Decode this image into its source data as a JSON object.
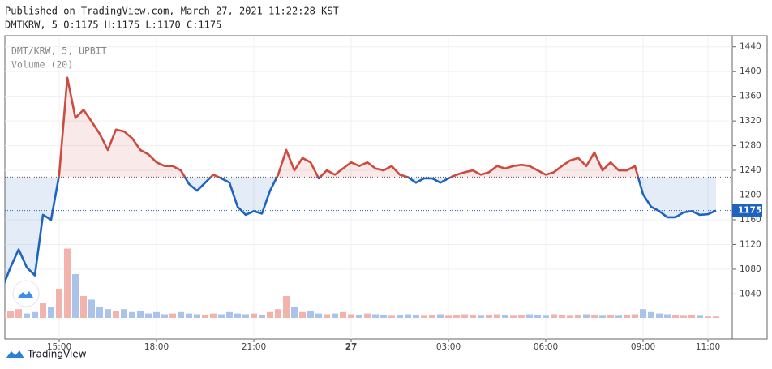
{
  "header": {
    "published": "Published on TradingView.com, March 27, 2021 11:22:28 KST",
    "ohlc": "DMTKRW, 5 O:1175 H:1175 L:1170 C:1175"
  },
  "footer": {
    "brand": "TradingView"
  },
  "chart_data": {
    "type": "baseline",
    "legend": [
      "DMT/KRW, 5, UPBIT",
      "Volume (20)"
    ],
    "categories": [
      null,
      null,
      null,
      null,
      null,
      null,
      null,
      "15:00",
      null,
      null,
      null,
      null,
      null,
      null,
      null,
      null,
      null,
      null,
      null,
      "18:00",
      null,
      null,
      null,
      null,
      null,
      null,
      null,
      null,
      null,
      null,
      null,
      "21:00",
      null,
      null,
      null,
      null,
      null,
      null,
      null,
      null,
      null,
      null,
      null,
      "27",
      null,
      null,
      null,
      null,
      null,
      null,
      null,
      null,
      null,
      null,
      null,
      "03:00",
      null,
      null,
      null,
      null,
      null,
      null,
      null,
      null,
      null,
      null,
      null,
      "06:00",
      null,
      null,
      null,
      null,
      null,
      null,
      null,
      null,
      null,
      null,
      null,
      "09:00",
      null,
      null,
      null,
      null,
      null,
      null,
      null,
      "11:00",
      null
    ],
    "values": [
      1050,
      1083,
      1112,
      1083,
      1070,
      1168,
      1160,
      1233,
      1390,
      1325,
      1338,
      1319,
      1299,
      1273,
      1306,
      1303,
      1292,
      1273,
      1266,
      1253,
      1247,
      1247,
      1240,
      1218,
      1207,
      1220,
      1233,
      1227,
      1220,
      1181,
      1168,
      1174,
      1170,
      1207,
      1233,
      1273,
      1240,
      1260,
      1253,
      1227,
      1240,
      1233,
      1243,
      1253,
      1247,
      1253,
      1243,
      1240,
      1247,
      1233,
      1229,
      1220,
      1227,
      1227,
      1220,
      1227,
      1233,
      1237,
      1240,
      1233,
      1237,
      1247,
      1243,
      1247,
      1249,
      1247,
      1240,
      1233,
      1237,
      1247,
      1256,
      1260,
      1247,
      1269,
      1240,
      1253,
      1240,
      1240,
      1247,
      1201,
      1181,
      1174,
      1164,
      1164,
      1172,
      1174,
      1168,
      1169,
      1175
    ],
    "volume": [
      8,
      10,
      12,
      6,
      8,
      20,
      15,
      40,
      95,
      60,
      30,
      25,
      15,
      12,
      10,
      12,
      8,
      10,
      6,
      8,
      5,
      6,
      8,
      6,
      5,
      4,
      6,
      5,
      8,
      6,
      5,
      6,
      4,
      8,
      12,
      30,
      15,
      8,
      10,
      6,
      5,
      6,
      8,
      5,
      4,
      6,
      5,
      4,
      3,
      4,
      5,
      4,
      3,
      4,
      5,
      3,
      4,
      5,
      4,
      3,
      4,
      5,
      4,
      3,
      4,
      5,
      4,
      3,
      5,
      4,
      3,
      4,
      5,
      4,
      3,
      4,
      3,
      4,
      5,
      12,
      8,
      6,
      5,
      4,
      3,
      4,
      3,
      2,
      2
    ],
    "vlim": [
      0,
      100
    ],
    "baseline": 1229,
    "last_price": 1175,
    "ylim": [
      967,
      1458
    ],
    "yticks": [
      1040,
      1080,
      1120,
      1160,
      1200,
      1240,
      1280,
      1320,
      1360,
      1400,
      1440
    ],
    "up_color": "#ce4a3e",
    "down_color": "#1e63c0",
    "volume_up_color": "#f2b3ad",
    "volume_down_color": "#a9c3ea",
    "grid": true
  }
}
